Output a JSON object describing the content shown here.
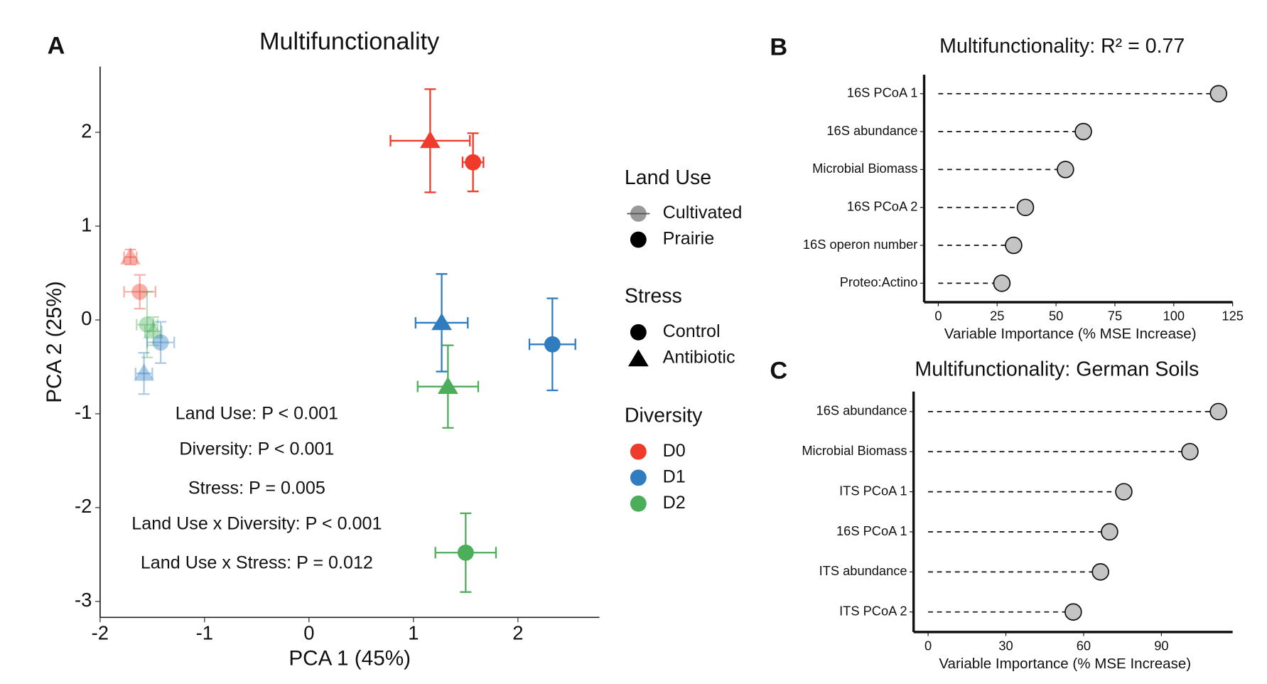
{
  "chart_data": [
    {
      "type": "scatter",
      "panel_label": "A",
      "title": "Multifunctionality",
      "x_label": "PCA 1 (45%)",
      "y_label": "PCA 2 (25%)",
      "xlim": [
        -2,
        2.78
      ],
      "ylim": [
        -3.17,
        2.7
      ],
      "xticks": [
        -2,
        -1,
        0,
        1,
        2
      ],
      "yticks": [
        -3,
        -2,
        -1,
        0,
        1,
        2
      ],
      "legend": [
        {
          "title": "Land Use",
          "items": [
            {
              "label": "Cultivated",
              "opacity": 0.4
            },
            {
              "label": "Prairie",
              "opacity": 1
            }
          ]
        },
        {
          "title": "Stress",
          "items": [
            {
              "label": "Control",
              "shape": "circle"
            },
            {
              "label": "Antibiotic",
              "shape": "triangle"
            }
          ]
        },
        {
          "title": "Diversity",
          "items": [
            {
              "label": "D0",
              "color": "#ee3b2b"
            },
            {
              "label": "D1",
              "color": "#2f7dc0"
            },
            {
              "label": "D2",
              "color": "#4cae5a"
            }
          ]
        }
      ],
      "points": [
        {
          "land_use": "Prairie",
          "stress": "Antibiotic",
          "diversity": "D0",
          "x": 1.16,
          "y": 1.91,
          "xerr": 0.38,
          "yerr": 0.55
        },
        {
          "land_use": "Prairie",
          "stress": "Control",
          "diversity": "D0",
          "x": 1.57,
          "y": 1.68,
          "xerr": 0.1,
          "yerr": 0.31
        },
        {
          "land_use": "Prairie",
          "stress": "Antibiotic",
          "diversity": "D1",
          "x": 1.27,
          "y": -0.03,
          "xerr": 0.25,
          "yerr": 0.52
        },
        {
          "land_use": "Prairie",
          "stress": "Control",
          "diversity": "D1",
          "x": 2.33,
          "y": -0.26,
          "xerr": 0.22,
          "yerr": 0.49
        },
        {
          "land_use": "Prairie",
          "stress": "Antibiotic",
          "diversity": "D2",
          "x": 1.33,
          "y": -0.71,
          "xerr": 0.29,
          "yerr": 0.44
        },
        {
          "land_use": "Prairie",
          "stress": "Control",
          "diversity": "D2",
          "x": 1.5,
          "y": -2.48,
          "xerr": 0.29,
          "yerr": 0.42
        },
        {
          "land_use": "Cultivated",
          "stress": "Antibiotic",
          "diversity": "D0",
          "x": -1.71,
          "y": 0.67,
          "xerr": 0.06,
          "yerr": 0.08
        },
        {
          "land_use": "Cultivated",
          "stress": "Control",
          "diversity": "D0",
          "x": -1.62,
          "y": 0.3,
          "xerr": 0.15,
          "yerr": 0.18
        },
        {
          "land_use": "Cultivated",
          "stress": "Control",
          "diversity": "D2",
          "x": -1.55,
          "y": -0.05,
          "xerr": 0.1,
          "yerr": 0.35
        },
        {
          "land_use": "Cultivated",
          "stress": "Antibiotic",
          "diversity": "D2",
          "x": -1.49,
          "y": -0.12,
          "xerr": 0.08,
          "yerr": 0.15
        },
        {
          "land_use": "Cultivated",
          "stress": "Control",
          "diversity": "D1",
          "x": -1.42,
          "y": -0.24,
          "xerr": 0.13,
          "yerr": 0.22
        },
        {
          "land_use": "Cultivated",
          "stress": "Antibiotic",
          "diversity": "D1",
          "x": -1.58,
          "y": -0.57,
          "xerr": 0.08,
          "yerr": 0.22
        }
      ],
      "annotations": [
        "Land Use: P < 0.001",
        "Diversity: P < 0.001",
        "Stress: P = 0.005",
        "Land Use x Diversity: P < 0.001",
        "Land Use x Stress: P = 0.012"
      ]
    },
    {
      "type": "lollipop",
      "panel_label": "B",
      "title": "Multifunctionality: R² = 0.77",
      "x_label": "Variable Importance (% MSE Increase)",
      "categories": [
        "16S PCoA 1",
        "16S abundance",
        "Microbial Biomass",
        "16S PCoA 2",
        "16S operon number",
        "Proteo:Actino"
      ],
      "values": [
        119,
        61.6,
        54,
        37,
        32,
        27
      ],
      "color": "#c4c4c4",
      "xlim": [
        -6,
        125
      ],
      "xticks": [
        0,
        25,
        50,
        75,
        100,
        125
      ]
    },
    {
      "type": "lollipop",
      "panel_label": "C",
      "title": "Multifunctionality: German Soils",
      "x_label": "Variable Importance (% MSE Increase)",
      "categories": [
        "16S abundance",
        "Microbial Biomass",
        "ITS PCoA 1",
        "16S PCoA 1",
        "ITS abundance",
        "ITS PCoA 2"
      ],
      "values": [
        112,
        101,
        75.5,
        70,
        66.5,
        56
      ],
      "color": "#c4c4c4",
      "xlim": [
        -5.6,
        117.5
      ],
      "xticks": [
        0,
        30,
        60,
        90
      ]
    }
  ]
}
